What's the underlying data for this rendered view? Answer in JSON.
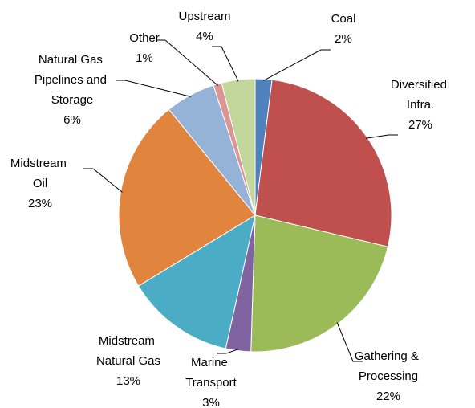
{
  "chart_data": {
    "type": "pie",
    "categories": [
      "Coal",
      "Diversified Infra.",
      "Gathering & Processing",
      "Marine Transport",
      "Midstream Natural Gas",
      "Midstream Oil",
      "Natural Gas Pipelines and Storage",
      "Other",
      "Upstream"
    ],
    "values": [
      2,
      27,
      22,
      3,
      13,
      23,
      6,
      1,
      4
    ],
    "value_labels": [
      "2%",
      "27%",
      "22%",
      "3%",
      "13%",
      "23%",
      "6%",
      "1%",
      "4%"
    ],
    "colors": [
      "#4f81bd",
      "#c0504d",
      "#9bbb59",
      "#8064a2",
      "#4bacc6",
      "#e0843e",
      "#95b3d7",
      "#d99694",
      "#c3d69b"
    ]
  }
}
